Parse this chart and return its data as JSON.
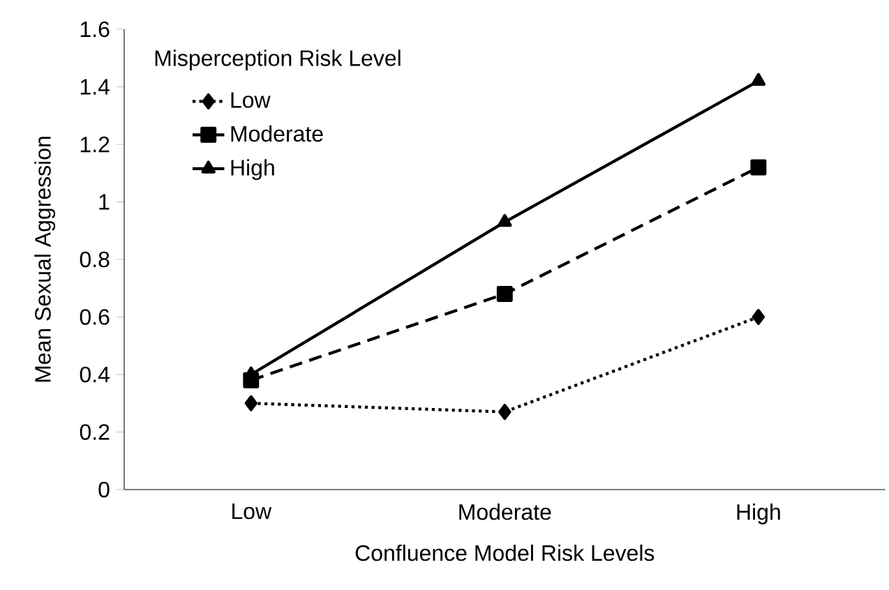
{
  "chart_data": {
    "type": "line",
    "xlabel": "Confluence Model Risk Levels",
    "ylabel": "Mean Sexual Aggression",
    "legend_title": "Misperception Risk Level",
    "categories": [
      "Low",
      "Moderate",
      "High"
    ],
    "series": [
      {
        "name": "Low",
        "color": "#000000",
        "values": [
          0.3,
          0.27,
          0.6
        ],
        "marker": "diamond",
        "line_style": "dotted"
      },
      {
        "name": "Moderate",
        "color": "#000000",
        "values": [
          0.38,
          0.68,
          1.12
        ],
        "marker": "square",
        "line_style": "dashed"
      },
      {
        "name": "High",
        "color": "#000000",
        "values": [
          0.4,
          0.93,
          1.42
        ],
        "marker": "triangle",
        "line_style": "solid"
      }
    ],
    "ylim": [
      0,
      1.6
    ],
    "yticks": [
      0,
      0.2,
      0.4,
      0.6,
      0.8,
      1,
      1.2,
      1.4,
      1.6
    ],
    "legend": "top left",
    "grid": false
  }
}
